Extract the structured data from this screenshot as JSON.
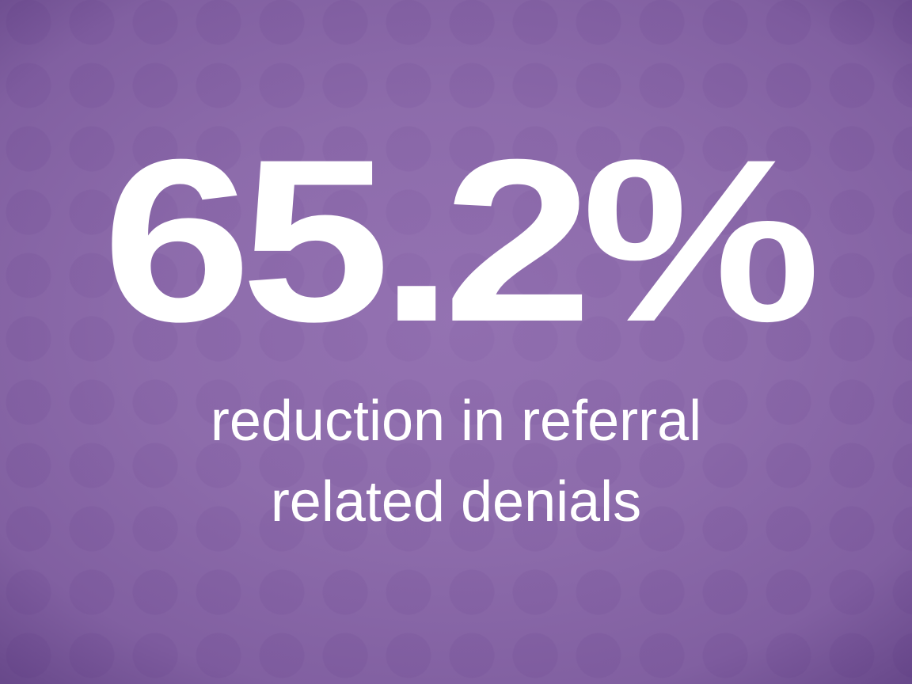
{
  "stat": {
    "value": "65.2%",
    "caption_line1": "reduction in referral",
    "caption_line2": "related denials"
  },
  "colors": {
    "background": "#8d6cab",
    "dots": "#7d5a9e",
    "text": "#ffffff"
  }
}
